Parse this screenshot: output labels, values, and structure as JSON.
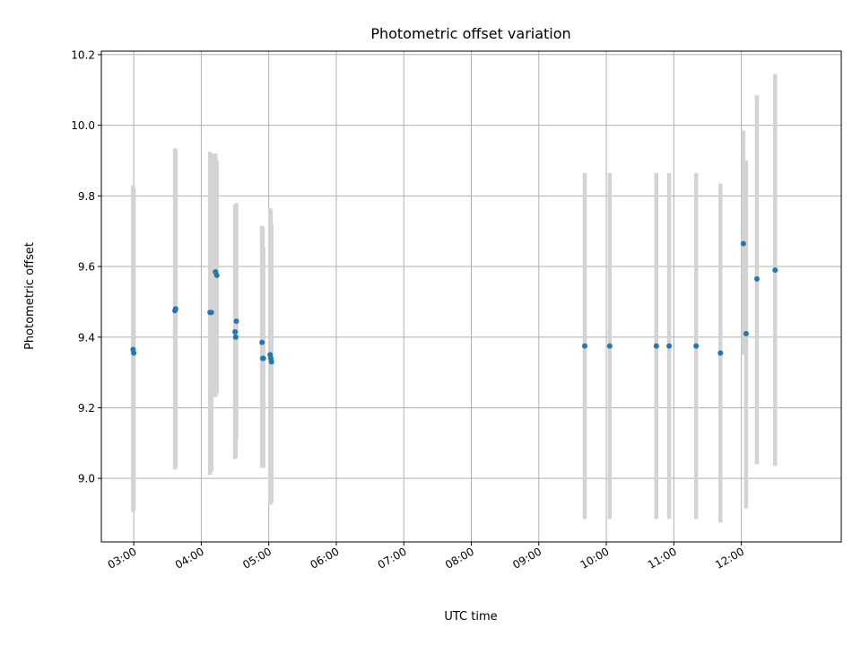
{
  "chart_data": {
    "type": "scatter",
    "title": "Photometric offset variation",
    "xlabel": "UTC time",
    "ylabel": "Photometric offset",
    "x_tick_labels": [
      "03:00",
      "04:00",
      "05:00",
      "06:00",
      "07:00",
      "08:00",
      "09:00",
      "10:00",
      "11:00",
      "12:00"
    ],
    "x_ticks_hours": [
      3,
      4,
      5,
      6,
      7,
      8,
      9,
      10,
      11,
      12
    ],
    "y_ticks": [
      9.0,
      9.2,
      9.4,
      9.6,
      9.8,
      10.0,
      10.2
    ],
    "y_tick_labels": [
      "9.0",
      "9.2",
      "9.4",
      "9.6",
      "9.8",
      "10.0",
      "10.2"
    ],
    "xlim_hours": [
      2.52,
      13.48
    ],
    "ylim": [
      8.82,
      10.21
    ],
    "grid": true,
    "marker_color": "#1f77b4",
    "errorbar_color": "#d3d3d3",
    "points": [
      {
        "t": 2.99,
        "y": 9.365,
        "lo": 8.905,
        "hi": 9.83
      },
      {
        "t": 3.0,
        "y": 9.355,
        "lo": 8.91,
        "hi": 9.82
      },
      {
        "t": 3.61,
        "y": 9.475,
        "lo": 9.025,
        "hi": 9.935
      },
      {
        "t": 3.62,
        "y": 9.48,
        "lo": 9.03,
        "hi": 9.93
      },
      {
        "t": 4.13,
        "y": 9.47,
        "lo": 9.01,
        "hi": 9.925
      },
      {
        "t": 4.15,
        "y": 9.47,
        "lo": 9.02,
        "hi": 9.92
      },
      {
        "t": 4.21,
        "y": 9.585,
        "lo": 9.23,
        "hi": 9.92
      },
      {
        "t": 4.23,
        "y": 9.575,
        "lo": 9.24,
        "hi": 9.9
      },
      {
        "t": 4.5,
        "y": 9.415,
        "lo": 9.055,
        "hi": 9.775
      },
      {
        "t": 4.51,
        "y": 9.4,
        "lo": 9.06,
        "hi": 9.76
      },
      {
        "t": 4.52,
        "y": 9.445,
        "lo": 9.11,
        "hi": 9.78
      },
      {
        "t": 4.9,
        "y": 9.385,
        "lo": 9.03,
        "hi": 9.715
      },
      {
        "t": 4.91,
        "y": 9.34,
        "lo": 9.035,
        "hi": 9.71
      },
      {
        "t": 4.92,
        "y": 9.34,
        "lo": 9.03,
        "hi": 9.655
      },
      {
        "t": 5.02,
        "y": 9.35,
        "lo": 8.925,
        "hi": 9.765
      },
      {
        "t": 5.03,
        "y": 9.34,
        "lo": 8.93,
        "hi": 9.76
      },
      {
        "t": 5.04,
        "y": 9.33,
        "lo": 8.93,
        "hi": 9.72
      },
      {
        "t": 9.68,
        "y": 9.375,
        "lo": 8.885,
        "hi": 9.865
      },
      {
        "t": 10.05,
        "y": 9.375,
        "lo": 8.885,
        "hi": 9.865
      },
      {
        "t": 10.74,
        "y": 9.375,
        "lo": 8.885,
        "hi": 9.865
      },
      {
        "t": 10.93,
        "y": 9.375,
        "lo": 8.885,
        "hi": 9.865
      },
      {
        "t": 11.33,
        "y": 9.375,
        "lo": 8.885,
        "hi": 9.865
      },
      {
        "t": 11.69,
        "y": 9.355,
        "lo": 8.875,
        "hi": 9.835
      },
      {
        "t": 12.03,
        "y": 9.665,
        "lo": 9.35,
        "hi": 9.985
      },
      {
        "t": 12.07,
        "y": 9.41,
        "lo": 8.915,
        "hi": 9.9
      },
      {
        "t": 12.23,
        "y": 9.565,
        "lo": 9.04,
        "hi": 10.085
      },
      {
        "t": 12.5,
        "y": 9.59,
        "lo": 9.035,
        "hi": 10.145
      }
    ]
  }
}
